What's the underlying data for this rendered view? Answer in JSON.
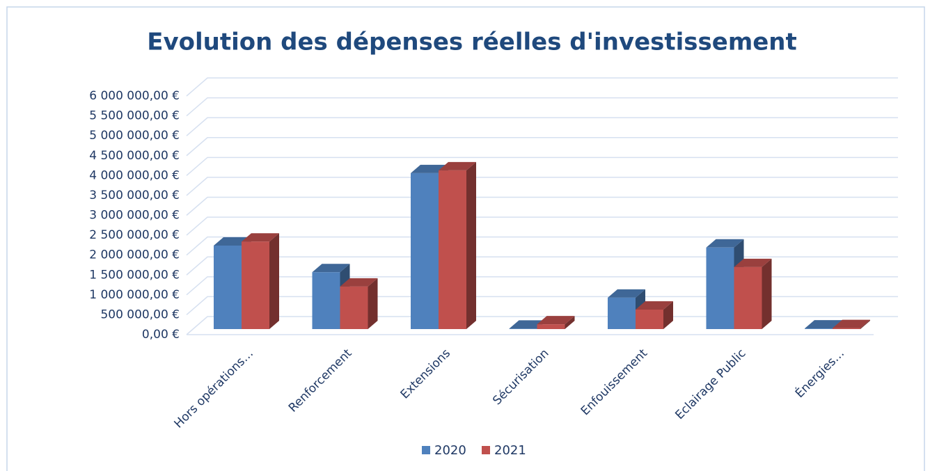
{
  "chart_data": {
    "type": "bar3d",
    "title": "Evolution des dépenses réelles d'investissement",
    "categories": [
      "Hors opérations…",
      "Renforcement",
      "Extensions",
      "Sécurisation",
      "Enfouissement",
      "Eclairage Public",
      "Énergies…"
    ],
    "series": [
      {
        "name": "2020",
        "color": "#4f81bd",
        "values": [
          2100000,
          1430000,
          3920000,
          10000,
          790000,
          2050000,
          15000
        ]
      },
      {
        "name": "2021",
        "color": "#c0504d",
        "values": [
          2200000,
          1070000,
          3990000,
          120000,
          490000,
          1560000,
          25000
        ]
      }
    ],
    "ylim": [
      0,
      6000000
    ],
    "yticks": [
      {
        "value": 0,
        "label": "0,00 €"
      },
      {
        "value": 500000,
        "label": "500 000,00 €"
      },
      {
        "value": 1000000,
        "label": "1 000 000,00 €"
      },
      {
        "value": 1500000,
        "label": "1 500 000,00 €"
      },
      {
        "value": 2000000,
        "label": "2 000 000,00 €"
      },
      {
        "value": 2500000,
        "label": "2 500 000,00 €"
      },
      {
        "value": 3000000,
        "label": "3 000 000,00 €"
      },
      {
        "value": 3500000,
        "label": "3 500 000,00 €"
      },
      {
        "value": 4000000,
        "label": "4 000 000,00 €"
      },
      {
        "value": 4500000,
        "label": "4 500 000,00 €"
      },
      {
        "value": 5000000,
        "label": "5 000 000,00 €"
      },
      {
        "value": 5500000,
        "label": "5 500 000,00 €"
      },
      {
        "value": 6000000,
        "label": "6 000 000,00 €"
      }
    ],
    "grid": true,
    "legend": "bottom"
  }
}
